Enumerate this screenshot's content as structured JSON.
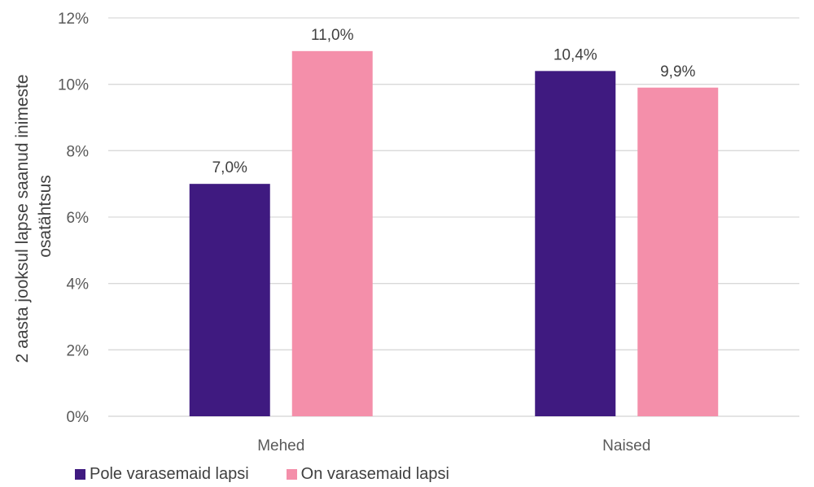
{
  "chart_data": {
    "type": "bar",
    "title": "",
    "xlabel": "",
    "ylabel_lines": [
      "2 aasta jooksul lapse saanud inimeste",
      "osatähtsus"
    ],
    "categories": [
      "Mehed",
      "Naised"
    ],
    "ylim": [
      0,
      12
    ],
    "yticks": [
      0,
      2,
      4,
      6,
      8,
      10,
      12
    ],
    "ytick_suffix": "%",
    "grid": true,
    "legend_position": "bottom-left",
    "series": [
      {
        "name": "Pole varasemaid lapsi",
        "color": "#3f1a80",
        "values": [
          7.0,
          10.4
        ],
        "labels": [
          "7,0%",
          "10,4%"
        ]
      },
      {
        "name": "On varasemaid lapsi",
        "color": "#f48faa",
        "values": [
          11.0,
          9.9
        ],
        "labels": [
          "11,0%",
          "9,9%"
        ]
      }
    ]
  }
}
